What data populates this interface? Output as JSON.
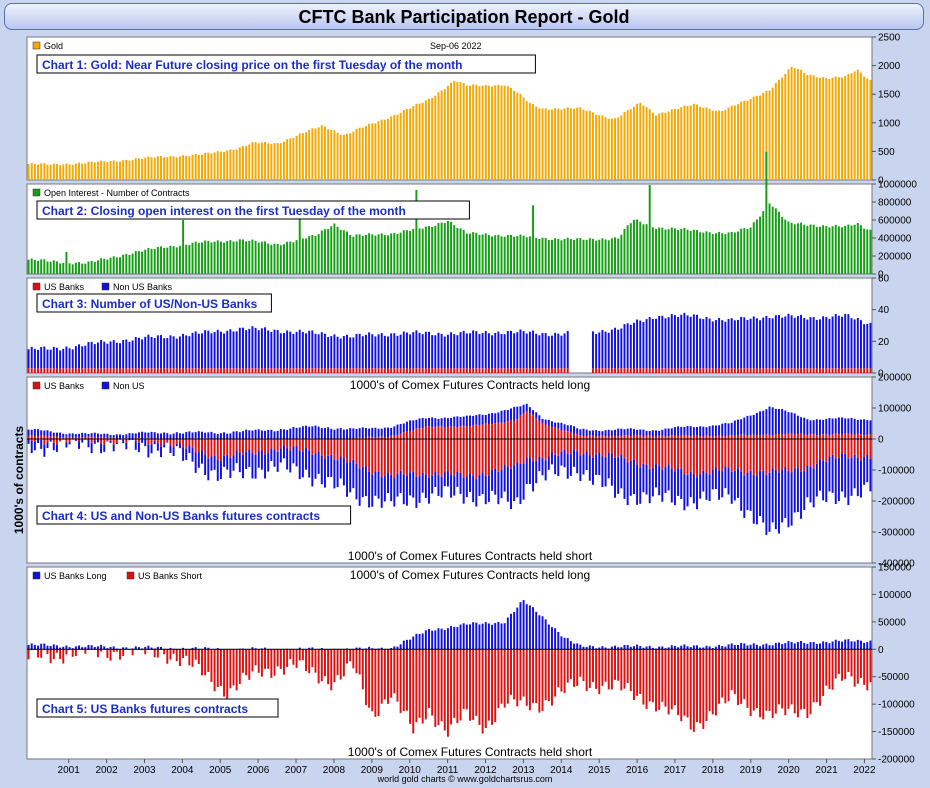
{
  "header": {
    "title": "CFTC Bank Participation Report - Gold"
  },
  "y_label": "1000's of contracts",
  "footer": "world gold charts © www.goldchartsrus.com",
  "x_axis_years": [
    "2001",
    "2002",
    "2003",
    "2004",
    "2005",
    "2006",
    "2007",
    "2008",
    "2009",
    "2010",
    "2011",
    "2012",
    "2013",
    "2014",
    "2015",
    "2016",
    "2017",
    "2018",
    "2019",
    "2020",
    "2021",
    "2022"
  ],
  "date_label": "Sep-06  2022",
  "chart_data": [
    {
      "type": "bar",
      "title": "Chart 1: Gold: Near Future closing price on the first Tuesday of the month",
      "legend": [
        {
          "name": "Gold",
          "color": "#f5a800"
        }
      ],
      "ylim": [
        0,
        2500
      ],
      "yticks": [
        "0",
        "500",
        "1000",
        "1500",
        "2000",
        "2500"
      ],
      "series_anchors": {
        "name": "Gold",
        "x": [
          2000.4,
          2001.0,
          2002.0,
          2003.0,
          2004.0,
          2005.0,
          2006.0,
          2006.4,
          2007.0,
          2008.0,
          2008.2,
          2008.8,
          2009.0,
          2010.0,
          2011.0,
          2011.7,
          2012.0,
          2012.5,
          2013.0,
          2013.3,
          2013.7,
          2014.0,
          2015.0,
          2015.9,
          2016.6,
          2017.0,
          2018.0,
          2018.7,
          2019.0,
          2019.5,
          2020.0,
          2020.6,
          2021.0,
          2021.5,
          2022.0,
          2022.3,
          2022.7
        ],
        "y": [
          280,
          270,
          300,
          350,
          410,
          440,
          560,
          650,
          640,
          900,
          950,
          780,
          850,
          1110,
          1400,
          1750,
          1650,
          1650,
          1670,
          1550,
          1320,
          1250,
          1250,
          1060,
          1350,
          1150,
          1320,
          1200,
          1280,
          1420,
          1580,
          1980,
          1850,
          1780,
          1800,
          1930,
          1720
        ]
      }
    },
    {
      "type": "bar",
      "title": "Chart 2: Closing open interest on the first Tuesday of the month",
      "legend": [
        {
          "name": "Open Interest - Number of Contracts",
          "color": "#12a012"
        }
      ],
      "ylim": [
        0,
        1000000
      ],
      "yticks": [
        "0",
        "200000",
        "400000",
        "600000",
        "800000",
        "1000000"
      ],
      "series_anchors": {
        "name": "Open Interest - Number of Contracts",
        "x": [
          2000.4,
          2001.0,
          2002.0,
          2003.0,
          2004.0,
          2005.0,
          2006.0,
          2007.0,
          2008.0,
          2008.5,
          2009.0,
          2010.0,
          2011.0,
          2011.5,
          2012.0,
          2013.0,
          2014.0,
          2015.0,
          2016.0,
          2016.4,
          2017.0,
          2018.0,
          2019.0,
          2019.5,
          2020.0,
          2020.5,
          2021.0,
          2022.0,
          2022.3,
          2022.7
        ],
        "y": [
          160000,
          140000,
          120000,
          220000,
          300000,
          350000,
          380000,
          330000,
          420000,
          560000,
          420000,
          450000,
          520000,
          600000,
          450000,
          430000,
          400000,
          380000,
          400000,
          600000,
          520000,
          480000,
          450000,
          520000,
          800000,
          560000,
          550000,
          520000,
          560000,
          480000
        ]
      }
    },
    {
      "type": "bar",
      "title": "Chart 3: Number of US/Non-US Banks",
      "legend": [
        {
          "name": "US Banks",
          "color": "#e01010"
        },
        {
          "name": "Non US Banks",
          "color": "#1010e0"
        }
      ],
      "ylim": [
        0,
        60
      ],
      "yticks": [
        "0",
        "20",
        "40",
        "60"
      ],
      "gap": [
        2014.7,
        2015.3
      ],
      "series_anchors": [
        {
          "name": "US Banks",
          "x": [
            2000.4,
            2022.7
          ],
          "y": [
            3,
            3
          ]
        },
        {
          "name": "Non US Banks",
          "x": [
            2000.4,
            2001.0,
            2002.0,
            2003.0,
            2004.0,
            2005.0,
            2006.0,
            2007.0,
            2008.0,
            2009.0,
            2010.0,
            2011.0,
            2012.0,
            2013.0,
            2014.0,
            2015.0,
            2016.0,
            2017.0,
            2018.0,
            2019.0,
            2020.0,
            2021.0,
            2022.0,
            2022.7
          ],
          "y": [
            12,
            12,
            15,
            18,
            20,
            22,
            25,
            24,
            22,
            20,
            22,
            22,
            22,
            23,
            22,
            22,
            25,
            33,
            33,
            30,
            33,
            32,
            33,
            28
          ]
        }
      ]
    },
    {
      "type": "bar",
      "title": "Chart 4: US and Non-US Banks futures contracts",
      "legend": [
        {
          "name": "US Banks",
          "color": "#e01010"
        },
        {
          "name": "Non US",
          "color": "#1010e0"
        }
      ],
      "caption_long": "1000's of Comex Futures Contracts held long",
      "caption_short": "1000's of Comex Futures Contracts held short",
      "ylim": [
        -400000,
        200000
      ],
      "yticks": [
        "-400000",
        "-300000",
        "-200000",
        "-100000",
        "0",
        "100000",
        "200000"
      ],
      "series_anchors": [
        {
          "name": "US Banks",
          "x": [
            2000.4,
            2002.0,
            2004.0,
            2005.5,
            2007.0,
            2008.0,
            2009.0,
            2010.0,
            2011.0,
            2012.0,
            2013.3,
            2013.6,
            2014.0,
            2015.0,
            2016.0,
            2017.0,
            2018.0,
            2019.0,
            2020.0,
            2021.0,
            2022.0,
            2022.7
          ],
          "long": [
            10000,
            5000,
            0,
            0,
            0,
            0,
            0,
            10000,
            40000,
            40000,
            60000,
            90000,
            50000,
            10000,
            10000,
            10000,
            10000,
            10000,
            15000,
            15000,
            15000,
            15000
          ],
          "short": [
            -5000,
            -5000,
            -10000,
            -60000,
            -30000,
            -40000,
            -80000,
            -120000,
            -110000,
            -120000,
            -90000,
            -60000,
            -60000,
            -40000,
            -60000,
            -90000,
            -110000,
            -100000,
            -110000,
            -90000,
            -50000,
            -60000
          ]
        },
        {
          "name": "Non US",
          "x": [
            2000.4,
            2002.0,
            2004.0,
            2005.5,
            2007.0,
            2008.0,
            2009.0,
            2010.0,
            2011.0,
            2012.0,
            2013.3,
            2013.6,
            2014.0,
            2015.0,
            2016.0,
            2017.0,
            2018.0,
            2019.0,
            2020.0,
            2021.0,
            2022.0,
            2022.7
          ],
          "long": [
            20000,
            10000,
            20000,
            20000,
            30000,
            40000,
            30000,
            30000,
            30000,
            30000,
            40000,
            20000,
            20000,
            20000,
            20000,
            20000,
            30000,
            40000,
            90000,
            50000,
            50000,
            50000
          ],
          "short": [
            -20000,
            -10000,
            -20000,
            -60000,
            -60000,
            -80000,
            -100000,
            -90000,
            -70000,
            -60000,
            -120000,
            -90000,
            -60000,
            -60000,
            -120000,
            -100000,
            -90000,
            -80000,
            -200000,
            -120000,
            -130000,
            -100000
          ]
        }
      ]
    },
    {
      "type": "bar",
      "title": "Chart 5: US Banks futures contracts",
      "legend": [
        {
          "name": "US Banks Long",
          "color": "#1010e0"
        },
        {
          "name": "US Banks Short",
          "color": "#e01010"
        }
      ],
      "caption_long": "1000's of Comex Futures Contracts held long",
      "caption_short": "1000's of Comex Futures Contracts held short",
      "ylim": [
        -200000,
        150000
      ],
      "yticks": [
        "-200000",
        "-150000",
        "-100000",
        "-50000",
        "0",
        "50000",
        "100000",
        "150000"
      ],
      "series_anchors": [
        {
          "name": "US Banks Long",
          "x": [
            2000.4,
            2002.0,
            2004.0,
            2005.5,
            2007.0,
            2009.0,
            2010.0,
            2011.0,
            2012.0,
            2013.0,
            2013.5,
            2014.0,
            2014.6,
            2015.0,
            2016.0,
            2018.0,
            2020.0,
            2022.0,
            2022.7
          ],
          "y": [
            8000,
            5000,
            2000,
            0,
            0,
            0,
            2000,
            35000,
            45000,
            50000,
            88000,
            60000,
            20000,
            5000,
            5000,
            5000,
            10000,
            15000,
            15000
          ]
        },
        {
          "name": "US Banks Short",
          "x": [
            2000.4,
            2002.0,
            2004.0,
            2005.0,
            2005.7,
            2006.5,
            2007.5,
            2008.5,
            2009.0,
            2009.5,
            2010.0,
            2010.6,
            2011.0,
            2011.5,
            2012.0,
            2012.5,
            2013.0,
            2014.0,
            2015.0,
            2016.0,
            2017.0,
            2018.0,
            2019.0,
            2020.0,
            2021.0,
            2022.0,
            2022.7
          ],
          "y": [
            -15000,
            -5000,
            -5000,
            -40000,
            -80000,
            -40000,
            -30000,
            -60000,
            -30000,
            -120000,
            -80000,
            -150000,
            -110000,
            -150000,
            -120000,
            -140000,
            -100000,
            -100000,
            -60000,
            -70000,
            -100000,
            -140000,
            -90000,
            -120000,
            -110000,
            -50000,
            -60000
          ]
        }
      ]
    }
  ]
}
